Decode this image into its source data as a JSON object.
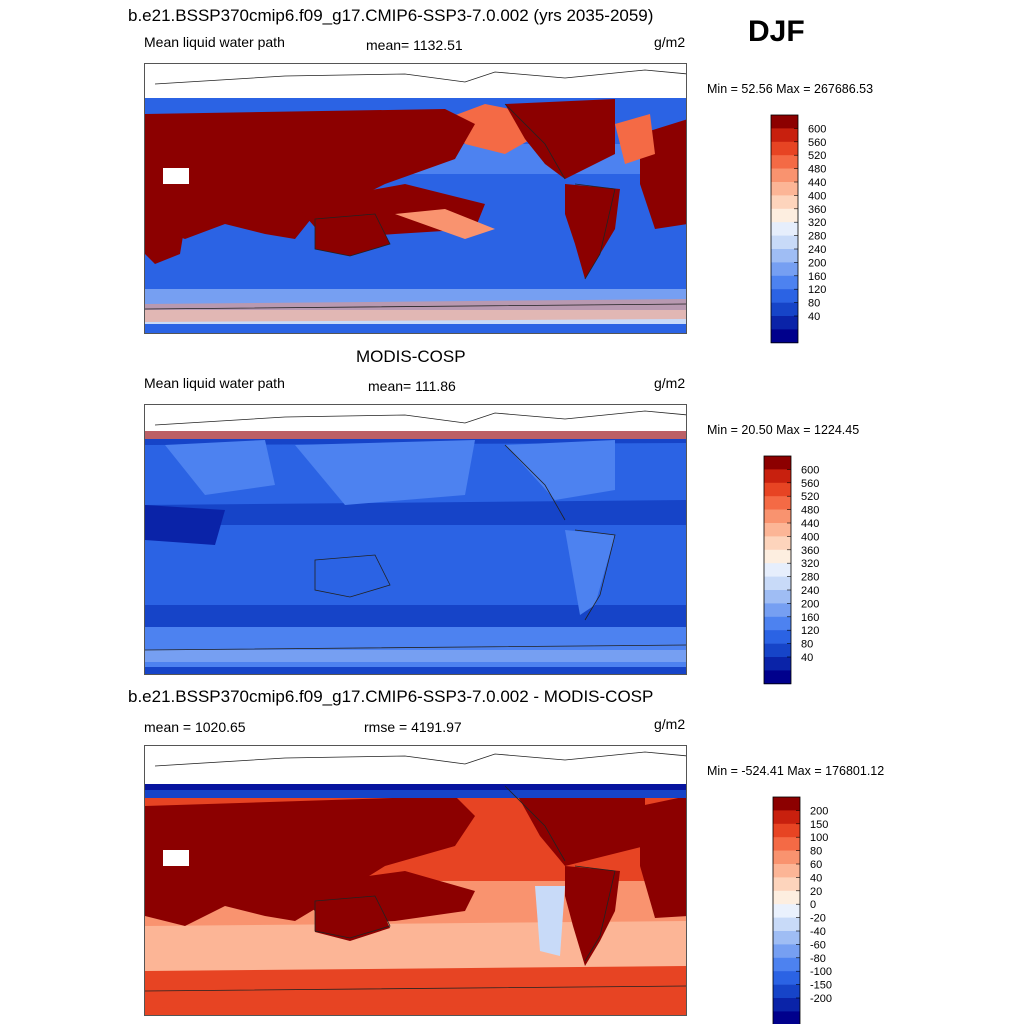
{
  "season": "DJF",
  "colors": {
    "lwp_levels": [
      "#00008c",
      "#0a23a8",
      "#1644c8",
      "#2b63e4",
      "#4d82f0",
      "#769ff2",
      "#9fbdf4",
      "#c8daf8",
      "#e6eefc",
      "#fdeee0",
      "#fdd4bc",
      "#fcb596",
      "#f9936f",
      "#f46a45",
      "#e74423",
      "#c8200e",
      "#8c0000"
    ],
    "diff_levels": [
      "#00008c",
      "#0a23a8",
      "#1644c8",
      "#2b63e4",
      "#4d82f0",
      "#769ff2",
      "#9fbdf4",
      "#c8daf8",
      "#eaf1fd",
      "#fdeee0",
      "#fdd4bc",
      "#fcb596",
      "#f9936f",
      "#f46a45",
      "#e74423",
      "#c8200e",
      "#8c0000"
    ]
  },
  "panels": [
    {
      "title": "b.e21.BSSP370cmip6.f09_g17.CMIP6-SSP3-7.0.002 (yrs 2035-2059)",
      "left_label": "Mean liquid water path",
      "center_label": "mean= 1132.51",
      "units": "g/m2",
      "minmax": "Min =  52.56 Max = 267686.53",
      "colorbar_labels": [
        "600",
        "560",
        "520",
        "480",
        "440",
        "400",
        "360",
        "320",
        "280",
        "240",
        "200",
        "160",
        "120",
        "80",
        "40"
      ]
    },
    {
      "title": "MODIS-COSP",
      "left_label": "Mean liquid water path",
      "center_label": "mean= 111.86",
      "units": "g/m2",
      "minmax": "Min =  20.50 Max = 1224.45",
      "colorbar_labels": [
        "600",
        "560",
        "520",
        "480",
        "440",
        "400",
        "360",
        "320",
        "280",
        "240",
        "200",
        "160",
        "120",
        "80",
        "40"
      ]
    },
    {
      "title": "b.e21.BSSP370cmip6.f09_g17.CMIP6-SSP3-7.0.002 - MODIS-COSP",
      "left_label": "mean = 1020.65",
      "center_label": "rmse = 4191.97",
      "units": "g/m2",
      "minmax": "Min = -524.41 Max = 176801.12",
      "colorbar_labels": [
        "200",
        "150",
        "100",
        "80",
        "60",
        "40",
        "20",
        "0",
        "-20",
        "-40",
        "-60",
        "-80",
        "-100",
        "-150",
        "-200"
      ]
    }
  ],
  "chart_data": [
    {
      "type": "heatmap",
      "title": "b.e21.BSSP370cmip6.f09_g17.CMIP6-SSP3-7.0.002 (yrs 2035-2059)",
      "variable": "Mean liquid water path",
      "units": "g/m2",
      "mean": 1132.51,
      "min": 52.56,
      "max": 267686.53,
      "contour_levels": [
        40,
        80,
        120,
        160,
        200,
        240,
        280,
        320,
        360,
        400,
        440,
        480,
        520,
        560,
        600
      ]
    },
    {
      "type": "heatmap",
      "title": "MODIS-COSP",
      "variable": "Mean liquid water path",
      "units": "g/m2",
      "mean": 111.86,
      "min": 20.5,
      "max": 1224.45,
      "contour_levels": [
        40,
        80,
        120,
        160,
        200,
        240,
        280,
        320,
        360,
        400,
        440,
        480,
        520,
        560,
        600
      ]
    },
    {
      "type": "heatmap",
      "title": "b.e21.BSSP370cmip6.f09_g17.CMIP6-SSP3-7.0.002 - MODIS-COSP",
      "units": "g/m2",
      "mean": 1020.65,
      "rmse": 4191.97,
      "min": -524.41,
      "max": 176801.12,
      "contour_levels": [
        -200,
        -150,
        -100,
        -80,
        -60,
        -40,
        -20,
        0,
        20,
        40,
        60,
        80,
        100,
        150,
        200
      ]
    }
  ]
}
